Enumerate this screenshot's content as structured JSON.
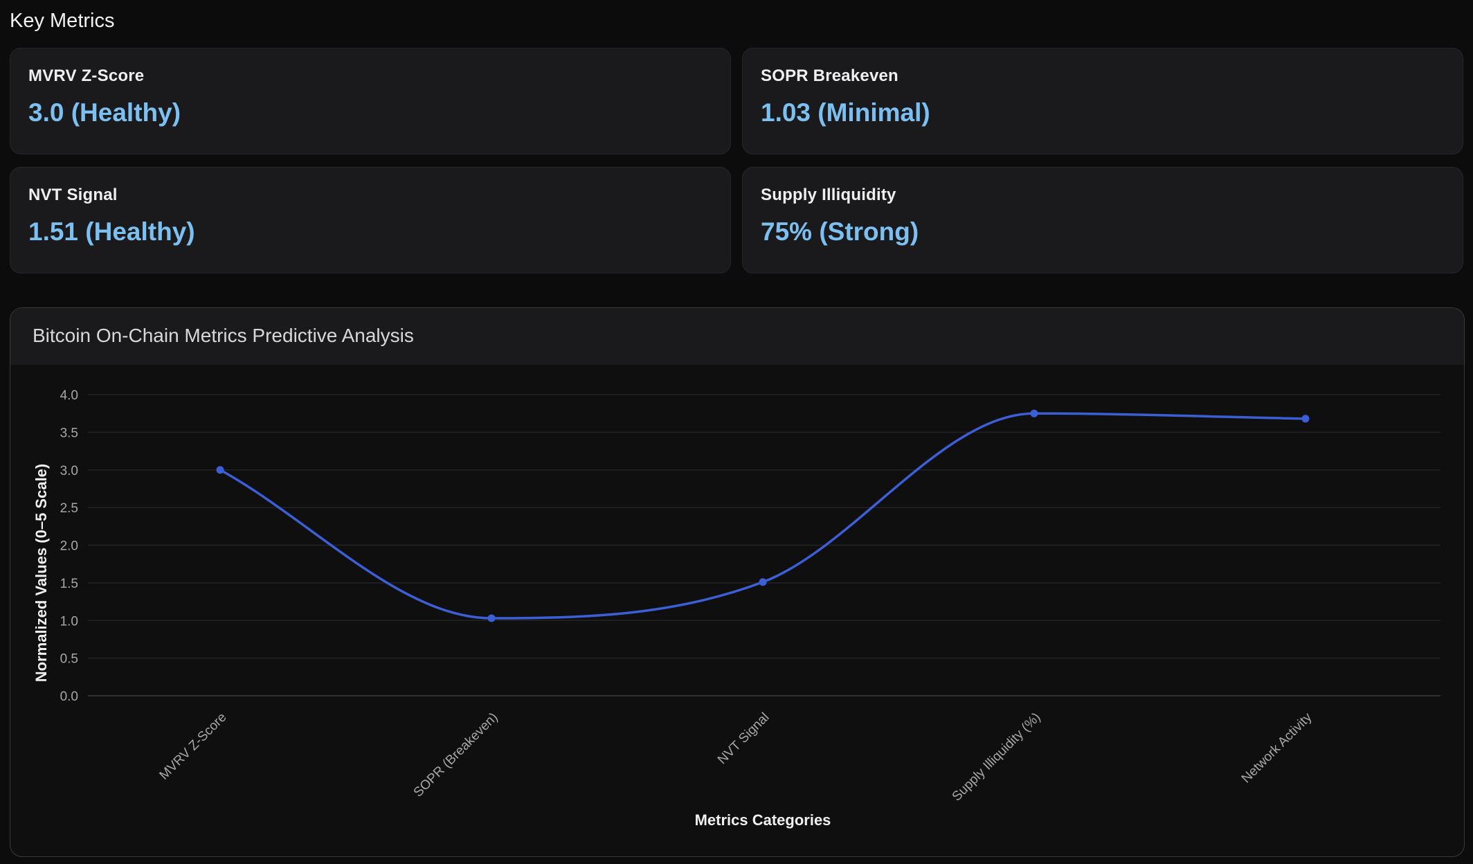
{
  "section_title": "Key Metrics",
  "metrics": [
    {
      "label": "MVRV Z-Score",
      "value": "3.0 (Healthy)"
    },
    {
      "label": "SOPR Breakeven",
      "value": "1.03 (Minimal)"
    },
    {
      "label": "NVT Signal",
      "value": "1.51 (Healthy)"
    },
    {
      "label": "Supply Illiquidity",
      "value": "75% (Strong)"
    }
  ],
  "chart": {
    "header": "Bitcoin On-Chain Metrics Predictive Analysis"
  },
  "chart_data": {
    "type": "line",
    "categories": [
      "MVRV Z-Score",
      "SOPR (Breakeven)",
      "NVT Signal",
      "Supply Illiquidity (%)",
      "Network Activity"
    ],
    "series": [
      {
        "values": [
          3.0,
          1.03,
          1.51,
          3.75,
          3.68
        ]
      }
    ],
    "xlabel": "Metrics Categories",
    "ylabel": "Normalized Values (0–5 Scale)",
    "ylim": [
      0,
      4.0
    ],
    "yticks": [
      0.0,
      0.5,
      1.0,
      1.5,
      2.0,
      2.5,
      3.0,
      3.5,
      4.0
    ],
    "grid": true,
    "line_color": "#3d5fd6",
    "legend": "none"
  }
}
